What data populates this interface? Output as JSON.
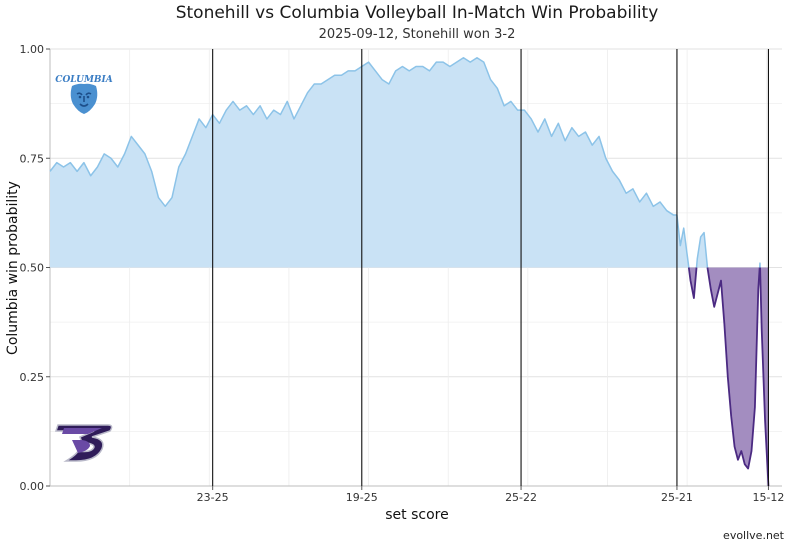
{
  "chart_data": {
    "type": "area",
    "title": "Stonehill vs Columbia Volleyball In-Match Win Probability",
    "subtitle": "2025-09-12, Stonehill won 3-2",
    "xlabel": "set score",
    "ylabel": "Columbia win probability",
    "caption": "evollve.net",
    "ylim": [
      0,
      1
    ],
    "y_ticks": [
      "0.00",
      "0.25",
      "0.50",
      "0.75",
      "1.00"
    ],
    "baseline": 0.5,
    "grid": true,
    "total_points": 212,
    "set_ends": [
      {
        "point": 48,
        "label": "23-25"
      },
      {
        "point": 92,
        "label": "19-25"
      },
      {
        "point": 139,
        "label": "25-22"
      },
      {
        "point": 185,
        "label": "25-21"
      },
      {
        "point": 212,
        "label": "15-12"
      }
    ],
    "series": [
      {
        "team": "Columbia",
        "color": "#8cc3e8",
        "fill": "#c9e2f5",
        "logo": "columbia-lions-logo",
        "logo_text": "COLUMBIA"
      },
      {
        "team": "Stonehill",
        "color": "#4b2a82",
        "fill": "#a38dc0",
        "logo": "stonehill-skyhawks-logo"
      }
    ],
    "points": [
      [
        0,
        0.72
      ],
      [
        2,
        0.74
      ],
      [
        4,
        0.73
      ],
      [
        6,
        0.74
      ],
      [
        8,
        0.72
      ],
      [
        10,
        0.74
      ],
      [
        12,
        0.71
      ],
      [
        14,
        0.73
      ],
      [
        16,
        0.76
      ],
      [
        18,
        0.75
      ],
      [
        20,
        0.73
      ],
      [
        22,
        0.76
      ],
      [
        24,
        0.8
      ],
      [
        26,
        0.78
      ],
      [
        28,
        0.76
      ],
      [
        30,
        0.72
      ],
      [
        32,
        0.66
      ],
      [
        34,
        0.64
      ],
      [
        36,
        0.66
      ],
      [
        38,
        0.73
      ],
      [
        40,
        0.76
      ],
      [
        42,
        0.8
      ],
      [
        44,
        0.84
      ],
      [
        46,
        0.82
      ],
      [
        48,
        0.85
      ],
      [
        50,
        0.83
      ],
      [
        52,
        0.86
      ],
      [
        54,
        0.88
      ],
      [
        56,
        0.86
      ],
      [
        58,
        0.87
      ],
      [
        60,
        0.85
      ],
      [
        62,
        0.87
      ],
      [
        64,
        0.84
      ],
      [
        66,
        0.86
      ],
      [
        68,
        0.85
      ],
      [
        70,
        0.88
      ],
      [
        72,
        0.84
      ],
      [
        74,
        0.87
      ],
      [
        76,
        0.9
      ],
      [
        78,
        0.92
      ],
      [
        80,
        0.92
      ],
      [
        82,
        0.93
      ],
      [
        84,
        0.94
      ],
      [
        86,
        0.94
      ],
      [
        88,
        0.95
      ],
      [
        90,
        0.95
      ],
      [
        92,
        0.96
      ],
      [
        94,
        0.97
      ],
      [
        96,
        0.95
      ],
      [
        98,
        0.93
      ],
      [
        100,
        0.92
      ],
      [
        102,
        0.95
      ],
      [
        104,
        0.96
      ],
      [
        106,
        0.95
      ],
      [
        108,
        0.96
      ],
      [
        110,
        0.96
      ],
      [
        112,
        0.95
      ],
      [
        114,
        0.97
      ],
      [
        116,
        0.97
      ],
      [
        118,
        0.96
      ],
      [
        120,
        0.97
      ],
      [
        122,
        0.98
      ],
      [
        124,
        0.97
      ],
      [
        126,
        0.98
      ],
      [
        128,
        0.97
      ],
      [
        130,
        0.93
      ],
      [
        132,
        0.91
      ],
      [
        134,
        0.87
      ],
      [
        136,
        0.88
      ],
      [
        138,
        0.86
      ],
      [
        140,
        0.86
      ],
      [
        142,
        0.84
      ],
      [
        144,
        0.81
      ],
      [
        146,
        0.84
      ],
      [
        148,
        0.8
      ],
      [
        150,
        0.83
      ],
      [
        152,
        0.79
      ],
      [
        154,
        0.82
      ],
      [
        156,
        0.8
      ],
      [
        158,
        0.81
      ],
      [
        160,
        0.78
      ],
      [
        162,
        0.8
      ],
      [
        164,
        0.75
      ],
      [
        166,
        0.72
      ],
      [
        168,
        0.7
      ],
      [
        170,
        0.67
      ],
      [
        172,
        0.68
      ],
      [
        174,
        0.65
      ],
      [
        176,
        0.67
      ],
      [
        178,
        0.64
      ],
      [
        180,
        0.65
      ],
      [
        182,
        0.63
      ],
      [
        184,
        0.62
      ],
      [
        185,
        0.62
      ],
      [
        186,
        0.55
      ],
      [
        187,
        0.59
      ],
      [
        188,
        0.53
      ],
      [
        189,
        0.47
      ],
      [
        190,
        0.43
      ],
      [
        191,
        0.52
      ],
      [
        192,
        0.57
      ],
      [
        193,
        0.58
      ],
      [
        194,
        0.5
      ],
      [
        195,
        0.45
      ],
      [
        196,
        0.41
      ],
      [
        197,
        0.44
      ],
      [
        198,
        0.47
      ],
      [
        199,
        0.37
      ],
      [
        200,
        0.25
      ],
      [
        201,
        0.16
      ],
      [
        202,
        0.09
      ],
      [
        203,
        0.06
      ],
      [
        204,
        0.08
      ],
      [
        205,
        0.05
      ],
      [
        206,
        0.04
      ],
      [
        207,
        0.08
      ],
      [
        208,
        0.18
      ],
      [
        209,
        0.45
      ],
      [
        209.5,
        0.51
      ],
      [
        210,
        0.36
      ],
      [
        211,
        0.15
      ],
      [
        212,
        0.0
      ]
    ]
  }
}
